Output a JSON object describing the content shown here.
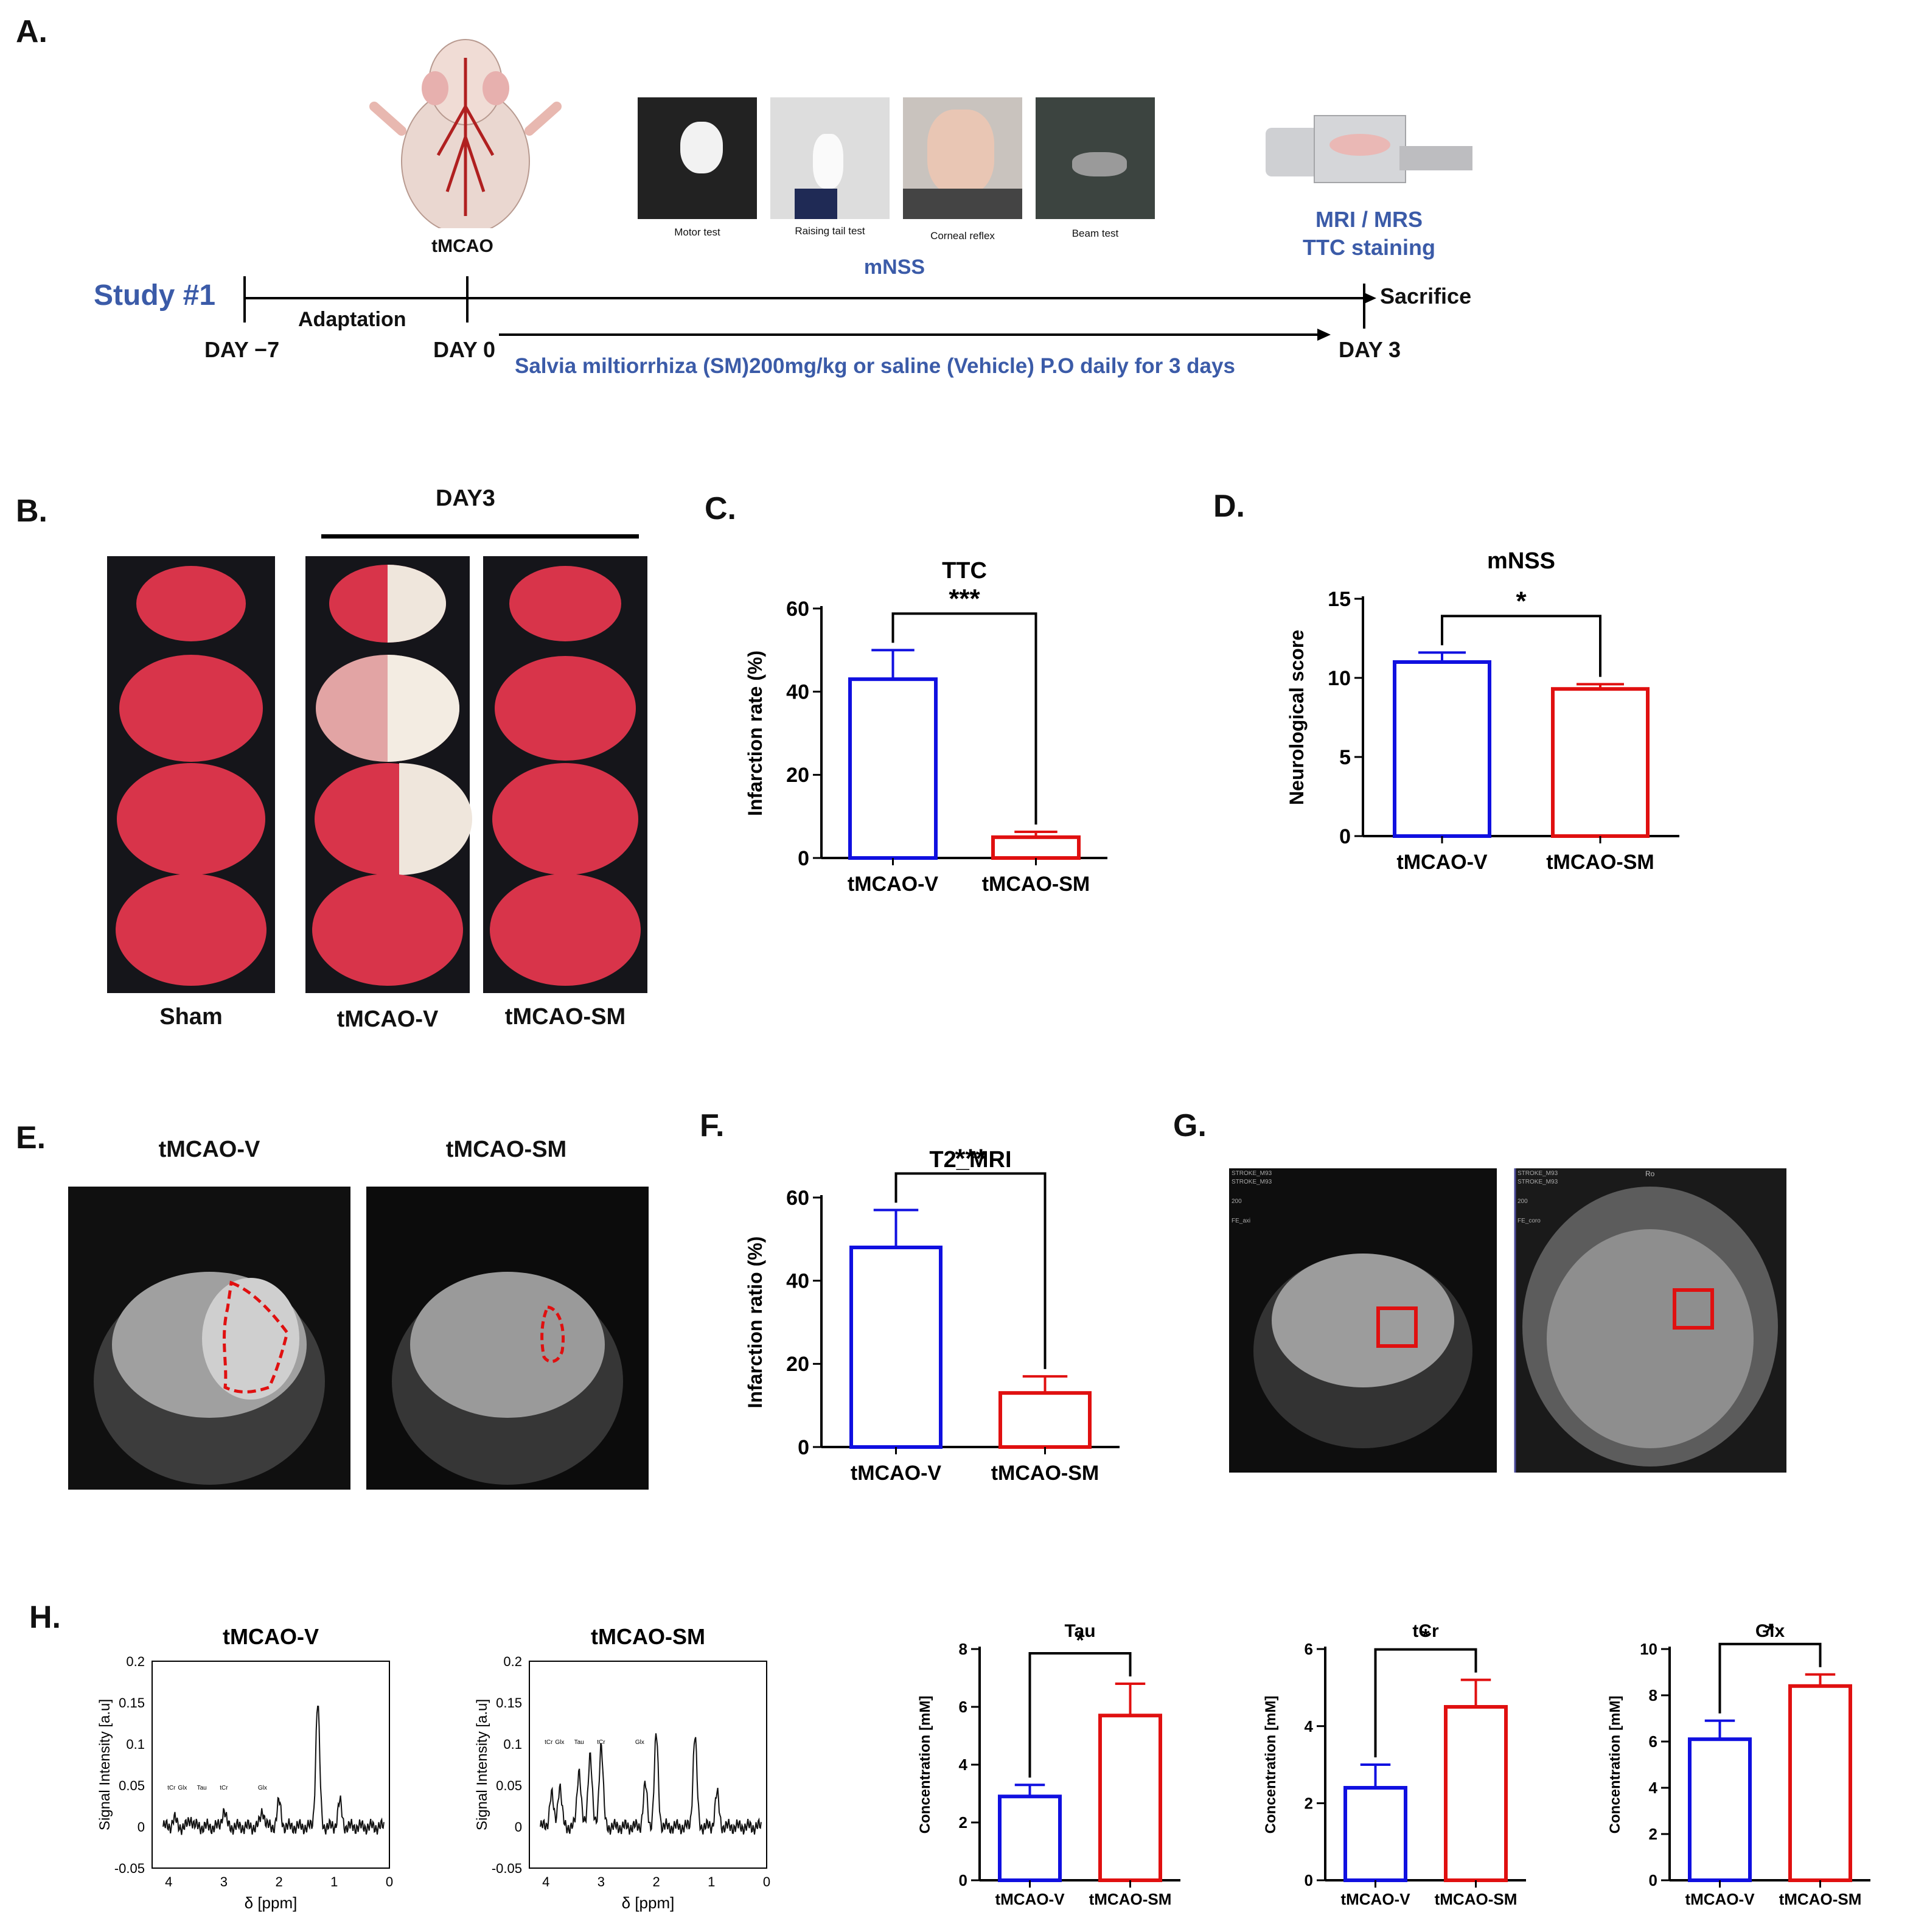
{
  "panelA": {
    "label": "A.",
    "study": "Study #1",
    "tmcao": "tMCAO",
    "tests": [
      "Motor test",
      "Raising tail test",
      "Corneal reflex",
      "Beam test"
    ],
    "mnss": "mNSS",
    "mri_line1": "MRI / MRS",
    "mri_line2": "TTC staining",
    "sacrifice": "Sacrifice",
    "adaptation": "Adaptation",
    "day_m7": "DAY −7",
    "day0": "DAY 0",
    "day3": "DAY 3",
    "treatment": "Salvia miltiorrhiza (SM)200mg/kg or saline (Vehicle) P.O daily for 3 days"
  },
  "panelB": {
    "label": "B.",
    "day": "DAY3",
    "groups": [
      "Sham",
      "tMCAO-V",
      "tMCAO-SM"
    ]
  },
  "panelE": {
    "label": "E.",
    "groups": [
      "tMCAO-V",
      "tMCAO-SM"
    ]
  },
  "panelG": {
    "label": "G.",
    "left_overlay": [
      "STROKE_M93",
      "STROKE_M93",
      "200",
      "FE_axi"
    ],
    "right_overlay": [
      "STROKE_M93",
      "STROKE_M93",
      "200",
      "FE_coro"
    ],
    "right_top": "Ro"
  },
  "panelH": {
    "label": "H.",
    "spectra": [
      {
        "title": "tMCAO-V",
        "ylabel": "Signal Intensity [a.u]",
        "xlabel": "δ [ppm]",
        "yticks": [
          "0.2",
          "0.15",
          "0.1",
          "0.05",
          "0",
          "-0.05"
        ],
        "xticks": [
          "4",
          "3",
          "2",
          "1",
          "0"
        ],
        "peaks": [
          "tCr",
          "Glx",
          "Tau",
          "tCr",
          "Glx"
        ]
      },
      {
        "title": "tMCAO-SM",
        "ylabel": "Signal Intensity [a.u]",
        "xlabel": "δ [ppm]",
        "yticks": [
          "0.2",
          "0.15",
          "0.1",
          "0.05",
          "0",
          "-0.05"
        ],
        "xticks": [
          "4",
          "3",
          "2",
          "1",
          "0"
        ],
        "peaks": [
          "tCr",
          "Glx",
          "Tau",
          "tCr",
          "Glx"
        ]
      }
    ]
  },
  "chart_data": [
    {
      "id": "C",
      "panel_label": "C.",
      "type": "bar",
      "title": "TTC",
      "ylabel": "Infarction rate (%)",
      "categories": [
        "tMCAO-V",
        "tMCAO-SM"
      ],
      "values": [
        43,
        5
      ],
      "errors": [
        7,
        1.3
      ],
      "ylim": [
        0,
        60
      ],
      "yticks": [
        0,
        20,
        40,
        60
      ],
      "significance": "***",
      "colors": [
        "#1010e0",
        "#e01010"
      ]
    },
    {
      "id": "D",
      "panel_label": "D.",
      "type": "bar",
      "title": "mNSS",
      "ylabel": "Neurological score",
      "categories": [
        "tMCAO-V",
        "tMCAO-SM"
      ],
      "values": [
        11,
        9.3
      ],
      "errors": [
        0.6,
        0.3
      ],
      "ylim": [
        0,
        15
      ],
      "yticks": [
        0,
        5,
        10,
        15
      ],
      "significance": "*",
      "colors": [
        "#1010e0",
        "#e01010"
      ]
    },
    {
      "id": "F",
      "panel_label": "F.",
      "type": "bar",
      "title": "T2_MRI",
      "ylabel": "Infarction ratio (%)",
      "categories": [
        "tMCAO-V",
        "tMCAO-SM"
      ],
      "values": [
        48,
        13
      ],
      "errors": [
        9,
        4
      ],
      "ylim": [
        0,
        60
      ],
      "yticks": [
        0,
        20,
        40,
        60
      ],
      "significance": "***",
      "colors": [
        "#1010e0",
        "#e01010"
      ]
    },
    {
      "id": "Tau",
      "type": "bar",
      "title": "Tau",
      "ylabel": "Concentration [mM]",
      "categories": [
        "tMCAO-V",
        "tMCAO-SM"
      ],
      "values": [
        2.9,
        5.7
      ],
      "errors": [
        0.4,
        1.1
      ],
      "ylim": [
        0,
        8
      ],
      "yticks": [
        0,
        2,
        4,
        6,
        8
      ],
      "significance": "*",
      "colors": [
        "#1010e0",
        "#e01010"
      ]
    },
    {
      "id": "tCr",
      "type": "bar",
      "title": "tCr",
      "ylabel": "Concentration [mM]",
      "categories": [
        "tMCAO-V",
        "tMCAO-SM"
      ],
      "values": [
        2.4,
        4.5
      ],
      "errors": [
        0.6,
        0.7
      ],
      "ylim": [
        0,
        6
      ],
      "yticks": [
        0,
        2,
        4,
        6
      ],
      "significance": "*",
      "colors": [
        "#1010e0",
        "#e01010"
      ]
    },
    {
      "id": "Glx",
      "type": "bar",
      "title": "Glx",
      "ylabel": "Concentration [mM]",
      "categories": [
        "tMCAO-V",
        "tMCAO-SM"
      ],
      "values": [
        6.1,
        8.4
      ],
      "errors": [
        0.8,
        0.5
      ],
      "ylim": [
        0,
        10
      ],
      "yticks": [
        0,
        2,
        4,
        6,
        8,
        10
      ],
      "significance": "*",
      "colors": [
        "#1010e0",
        "#e01010"
      ]
    }
  ]
}
